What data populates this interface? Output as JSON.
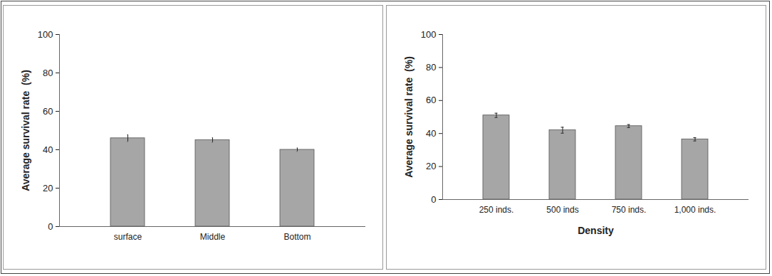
{
  "chart_data": [
    {
      "type": "bar",
      "categories": [
        "surface",
        "Middle",
        "Bottom"
      ],
      "values": [
        46,
        45,
        40
      ],
      "error": [
        1.8,
        1.2,
        0.9
      ],
      "y_label": "Average survival rate  (%)",
      "color": "#a6a6a6",
      "ylim": [
        0,
        100
      ],
      "yticks": [
        0,
        20,
        40,
        60,
        80,
        100
      ],
      "grid": false
    },
    {
      "type": "bar",
      "categories": [
        "250 inds.",
        "500 inds",
        "750 inds.",
        "1,000 inds."
      ],
      "values": [
        51,
        42,
        44.5,
        36.5
      ],
      "error": [
        1.3,
        1.8,
        0.9,
        1.0
      ],
      "x_label": "Density",
      "y_label": "Average survival rate  (%)",
      "color": "#a6a6a6",
      "ylim": [
        0,
        100
      ],
      "yticks": [
        0,
        20,
        40,
        60,
        80,
        100
      ],
      "grid": false
    }
  ]
}
